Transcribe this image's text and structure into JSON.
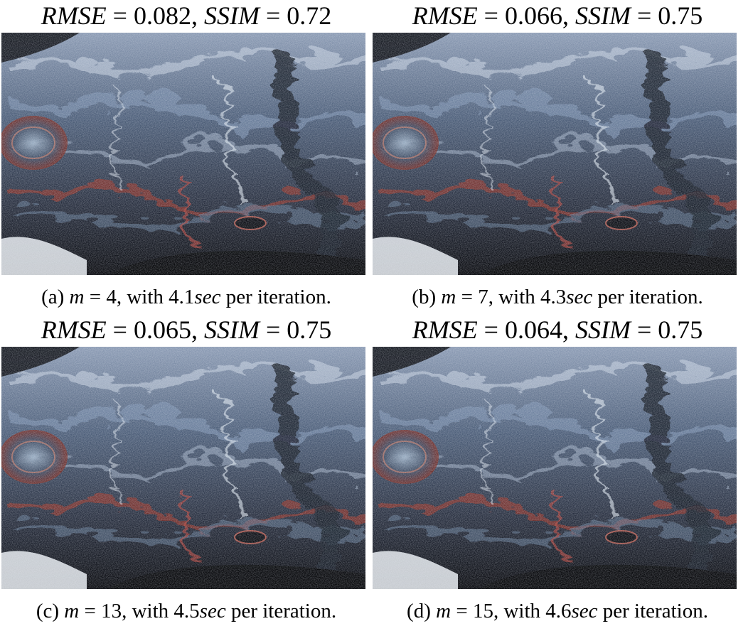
{
  "panels": [
    {
      "id": "a",
      "metric": {
        "rmse_label": "RMSE",
        "rmse_value": "0.082",
        "ssim_label": "SSIM",
        "ssim_value": "0.72"
      },
      "caption": {
        "tag": "(a)",
        "var": "m",
        "m_value": "4",
        "prefix": ", with",
        "time": "4.1",
        "unit": "sec",
        "suffix": "per iteration."
      }
    },
    {
      "id": "b",
      "metric": {
        "rmse_label": "RMSE",
        "rmse_value": "0.066",
        "ssim_label": "SSIM",
        "ssim_value": "0.75"
      },
      "caption": {
        "tag": "(b)",
        "var": "m",
        "m_value": "7",
        "prefix": ", with",
        "time": "4.3",
        "unit": "sec",
        "suffix": "per iteration."
      }
    },
    {
      "id": "c",
      "metric": {
        "rmse_label": "RMSE",
        "rmse_value": "0.065",
        "ssim_label": "SSIM",
        "ssim_value": "0.75"
      },
      "caption": {
        "tag": "(c)",
        "var": "m",
        "m_value": "13",
        "prefix": ", with",
        "time": "4.5",
        "unit": "sec",
        "suffix": "per iteration."
      }
    },
    {
      "id": "d",
      "metric": {
        "rmse_label": "RMSE",
        "rmse_value": "0.064",
        "ssim_label": "SSIM",
        "ssim_value": "0.75"
      },
      "caption": {
        "tag": "(d)",
        "var": "m",
        "m_value": "15",
        "prefix": ", with",
        "time": "4.6",
        "unit": "sec",
        "suffix": "per iteration."
      }
    }
  ],
  "colors": {
    "background": "#ffffff",
    "text": "#000000",
    "flow_dark": "#0b0d14",
    "flow_blue": "#5a6f8c",
    "flow_light": "#b9c6d6",
    "flow_red": "#8a2a22"
  }
}
